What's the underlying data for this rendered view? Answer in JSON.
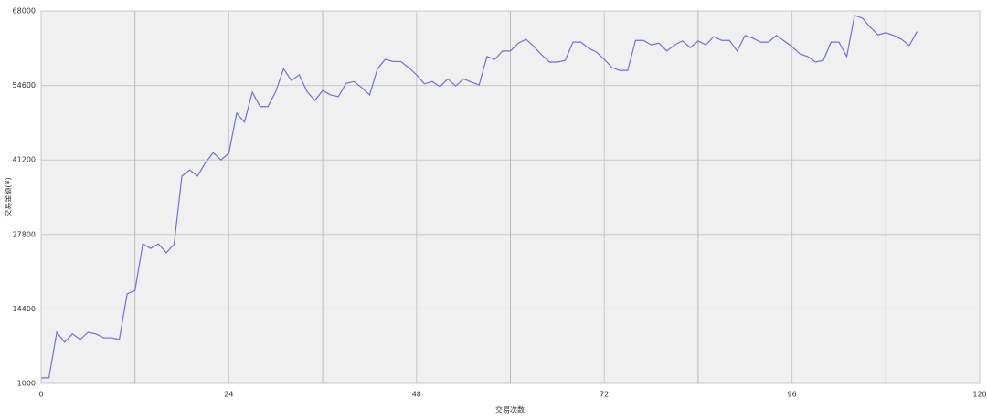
{
  "chart_data": {
    "type": "line",
    "x_label": "交易次数",
    "y_label": "交易金额(¥)",
    "xlim": [
      0,
      120
    ],
    "xticks": [
      0,
      24,
      48,
      72,
      96,
      120
    ],
    "xminorticks": [
      12,
      36,
      60,
      84,
      108
    ],
    "ylim": [
      1000,
      68000
    ],
    "yticks": [
      1000,
      14400,
      27800,
      41200,
      54600,
      68000
    ],
    "grid": true,
    "series": [
      {
        "color": "#7070d8",
        "x": [
          0,
          1,
          2,
          3,
          4,
          5,
          6,
          7,
          8,
          9,
          10,
          11,
          12,
          13,
          14,
          15,
          16,
          17,
          18,
          19,
          20,
          21,
          22,
          23,
          24,
          25,
          26,
          27,
          28,
          29,
          30,
          31,
          32,
          33,
          34,
          35,
          36,
          37,
          38,
          39,
          40,
          41,
          42,
          43,
          44,
          45,
          46,
          47,
          48,
          49,
          50,
          51,
          52,
          53,
          54,
          55,
          56,
          57,
          58,
          59,
          60,
          61,
          62,
          63,
          64,
          65,
          66,
          67,
          68,
          69,
          70,
          71,
          72,
          73,
          74,
          75,
          76,
          77,
          78,
          79,
          80,
          81,
          82,
          83,
          84,
          85,
          86,
          87,
          88,
          89,
          90,
          91,
          92,
          93,
          94,
          95,
          96,
          97,
          98,
          99,
          100,
          101,
          102,
          103,
          104,
          105,
          106,
          107,
          108,
          109,
          110,
          111,
          112
        ],
        "values": [
          2000,
          2000,
          10200,
          8400,
          9900,
          8900,
          10200,
          9900,
          9200,
          9200,
          8900,
          17100,
          17700,
          26100,
          25300,
          26100,
          24500,
          26000,
          38300,
          39400,
          38300,
          40700,
          42500,
          41200,
          42400,
          49600,
          48000,
          53400,
          50800,
          50800,
          53500,
          57600,
          55500,
          56500,
          53500,
          51900,
          53700,
          52900,
          52600,
          55000,
          55300,
          54200,
          52900,
          57600,
          59300,
          58900,
          58900,
          57800,
          56500,
          54900,
          55300,
          54400,
          55800,
          54500,
          55800,
          55200,
          54700,
          59800,
          59300,
          60800,
          60800,
          62200,
          62900,
          61600,
          60100,
          58800,
          58800,
          59100,
          62400,
          62400,
          61300,
          60600,
          59300,
          57800,
          57300,
          57300,
          62700,
          62700,
          61900,
          62200,
          60800,
          61900,
          62600,
          61400,
          62600,
          61900,
          63400,
          62700,
          62700,
          60800,
          63600,
          63100,
          62400,
          62400,
          63600,
          62600,
          61600,
          60300,
          59800,
          58800,
          59100,
          62400,
          62400,
          59800,
          67200,
          66700,
          65100,
          63700,
          64100,
          63600,
          62900,
          61800,
          64300
        ]
      }
    ]
  }
}
